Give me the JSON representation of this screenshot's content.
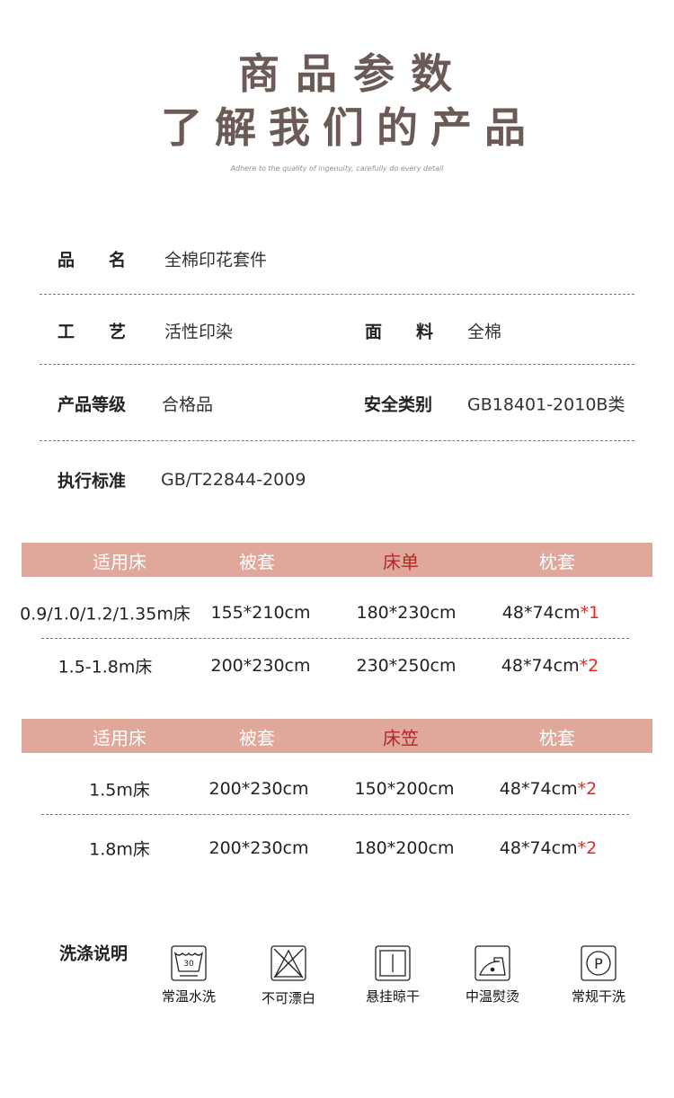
{
  "header": {
    "title": "商品参数",
    "subtitle": "了解我们的产品",
    "tagline": "Adhere to the quality of ingenuity, carefully do every detail"
  },
  "specs": {
    "name_label": "品　　名",
    "name_value": "全棉印花套件",
    "craft_label": "工　　艺",
    "craft_value": "活性印染",
    "fabric_label": "面　　料",
    "fabric_value": "全棉",
    "grade_label": "产品等级",
    "grade_value": "合格品",
    "safety_label": "安全类别",
    "safety_value": "GB18401-2010B类",
    "standard_label": "执行标准",
    "standard_value": "GB/T22844-2009"
  },
  "table1": {
    "headers": [
      "适用床",
      "被套",
      "床单",
      "枕套"
    ],
    "rows": [
      {
        "bed": "0.9/1.0/1.2/1.35m床",
        "duvet": "155*210cm",
        "sheet": "180*230cm",
        "pillow": "48*74cm",
        "qty": "*1"
      },
      {
        "bed": "1.5-1.8m床",
        "duvet": "200*230cm",
        "sheet": "230*250cm",
        "pillow": "48*74cm",
        "qty": "*2"
      }
    ]
  },
  "table2": {
    "headers": [
      "适用床",
      "被套",
      "床笠",
      "枕套"
    ],
    "rows": [
      {
        "bed": "1.5m床",
        "duvet": "200*230cm",
        "sheet": "150*200cm",
        "pillow": "48*74cm",
        "qty": "*2"
      },
      {
        "bed": "1.8m床",
        "duvet": "200*230cm",
        "sheet": "180*200cm",
        "pillow": "48*74cm",
        "qty": "*2"
      }
    ]
  },
  "care": {
    "label": "洗涤说明",
    "items": [
      {
        "icon": "wash-30-icon",
        "label": "常温水洗",
        "temp": "30"
      },
      {
        "icon": "no-bleach-icon",
        "label": "不可漂白"
      },
      {
        "icon": "hang-dry-icon",
        "label": "悬挂晾干"
      },
      {
        "icon": "iron-medium-icon",
        "label": "中温熨烫"
      },
      {
        "icon": "dry-clean-p-icon",
        "label": "常规干洗",
        "letter": "P"
      }
    ]
  },
  "colors": {
    "title": "#6b5a55",
    "header_bar": "#e0a79b",
    "header_highlight": "#b0282a",
    "quantity": "#e8241c"
  }
}
